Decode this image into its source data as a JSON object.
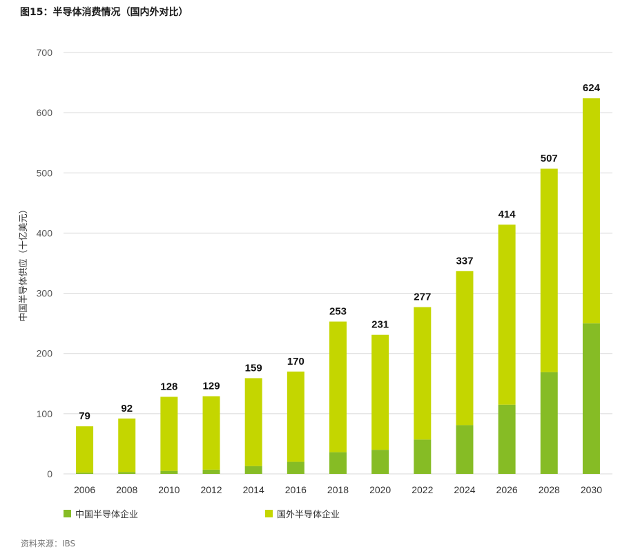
{
  "title": "图15：半导体消费情况（国内外对比）",
  "source": "资料来源：IBS",
  "colors": {
    "china": "#86bc25",
    "foreign": "#c4d600",
    "grid": "#d8d8d8"
  },
  "chart_data": {
    "type": "bar",
    "stacked": true,
    "title": "图15：半导体消费情况（国内外对比）",
    "xlabel": "",
    "ylabel": "中国半导体供应（十亿美元）",
    "ylim": [
      0,
      700
    ],
    "yticks": [
      0,
      100,
      200,
      300,
      400,
      500,
      600,
      700
    ],
    "grid": true,
    "legend_position": "bottom",
    "categories": [
      "2006",
      "2008",
      "2010",
      "2012",
      "2014",
      "2016",
      "2018",
      "2020",
      "2022",
      "2024",
      "2026",
      "2028",
      "2030"
    ],
    "totals": [
      79,
      92,
      128,
      129,
      159,
      170,
      253,
      231,
      277,
      337,
      414,
      507,
      624
    ],
    "series": [
      {
        "name": "中国半导体企业",
        "values": [
          2,
          3,
          5,
          7,
          13,
          20,
          36,
          40,
          57,
          81,
          115,
          169,
          250
        ]
      },
      {
        "name": "国外半导体企业",
        "values": [
          77,
          89,
          123,
          122,
          146,
          150,
          217,
          191,
          220,
          256,
          299,
          338,
          374
        ]
      }
    ]
  }
}
